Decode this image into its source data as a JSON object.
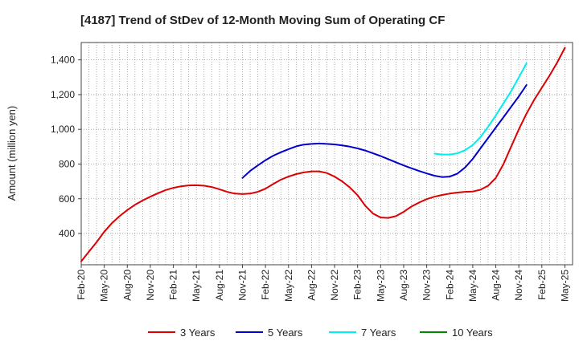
{
  "chart_data": {
    "type": "line",
    "title": "[4187]  Trend of StDev of 12-Month Moving Sum of Operating CF",
    "ylabel": "Amount (million yen)",
    "xlabel": "",
    "ylim": [
      220,
      1500
    ],
    "yticks": [
      400,
      600,
      800,
      1000,
      1200,
      1400
    ],
    "ytick_labels": [
      "400",
      "600",
      "800",
      "1,000",
      "1,200",
      "1,400"
    ],
    "xticks": [
      "Feb-20",
      "May-20",
      "Aug-20",
      "Nov-20",
      "Feb-21",
      "May-21",
      "Aug-21",
      "Nov-21",
      "Feb-22",
      "May-22",
      "Aug-22",
      "Nov-22",
      "Feb-23",
      "May-23",
      "Aug-23",
      "Nov-23",
      "Feb-24",
      "May-24",
      "Aug-24",
      "Nov-24",
      "Feb-25",
      "May-25"
    ],
    "grid": true,
    "legend_position": "bottom",
    "series": [
      {
        "name": "3 Years",
        "color": "#dd0000",
        "start_index": 0,
        "values": [
          240,
          295,
          350,
          410,
          460,
          500,
          535,
          565,
          590,
          612,
          632,
          650,
          663,
          672,
          677,
          678,
          675,
          668,
          655,
          640,
          630,
          627,
          630,
          640,
          658,
          685,
          710,
          728,
          742,
          752,
          758,
          758,
          748,
          728,
          700,
          665,
          620,
          560,
          515,
          492,
          490,
          500,
          525,
          555,
          578,
          598,
          612,
          622,
          630,
          636,
          640,
          642,
          652,
          675,
          720,
          800,
          900,
          1000,
          1090,
          1170,
          1240,
          1310,
          1385,
          1470
        ]
      },
      {
        "name": "5 Years",
        "color": "#0000cc",
        "start_index": 21,
        "values": [
          720,
          760,
          792,
          822,
          848,
          868,
          886,
          902,
          912,
          916,
          918,
          916,
          913,
          907,
          900,
          890,
          878,
          862,
          846,
          828,
          810,
          792,
          776,
          760,
          746,
          733,
          725,
          728,
          745,
          780,
          830,
          890,
          950,
          1010,
          1070,
          1130,
          1190,
          1255
        ]
      },
      {
        "name": "7 Years",
        "color": "#00eeee",
        "start_index": 46,
        "values": [
          860,
          855,
          855,
          862,
          880,
          910,
          955,
          1015,
          1080,
          1150,
          1220,
          1300,
          1380
        ]
      },
      {
        "name": "10 Years",
        "color": "#008800",
        "start_index": 0,
        "values": []
      }
    ]
  }
}
